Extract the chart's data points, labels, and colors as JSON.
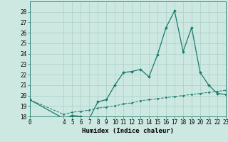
{
  "xlabel": "Humidex (Indice chaleur)",
  "background_color": "#cce8e0",
  "line_color": "#1a7a6e",
  "grid_color": "#aacfc8",
  "x_data": [
    0,
    4,
    5,
    6,
    7,
    8,
    9,
    10,
    11,
    12,
    13,
    14,
    15,
    16,
    17,
    18,
    19,
    20,
    21,
    22,
    23
  ],
  "y_data1": [
    19.6,
    17.8,
    18.1,
    18.0,
    17.8,
    19.4,
    19.6,
    21.0,
    22.2,
    22.3,
    22.5,
    21.8,
    23.9,
    26.5,
    28.1,
    24.2,
    26.5,
    22.2,
    21.0,
    20.2,
    20.1
  ],
  "y_data2": [
    19.6,
    18.2,
    18.4,
    18.5,
    18.6,
    18.8,
    18.9,
    19.0,
    19.2,
    19.3,
    19.5,
    19.6,
    19.7,
    19.8,
    19.9,
    20.0,
    20.1,
    20.2,
    20.3,
    20.4,
    20.5
  ],
  "ylim": [
    18,
    29
  ],
  "xlim": [
    0,
    23
  ],
  "yticks": [
    18,
    19,
    20,
    21,
    22,
    23,
    24,
    25,
    26,
    27,
    28
  ],
  "xticks": [
    0,
    4,
    5,
    6,
    7,
    8,
    9,
    10,
    11,
    12,
    13,
    14,
    15,
    16,
    17,
    18,
    19,
    20,
    21,
    22,
    23
  ],
  "tick_fontsize": 5.5,
  "label_fontsize": 6.5
}
